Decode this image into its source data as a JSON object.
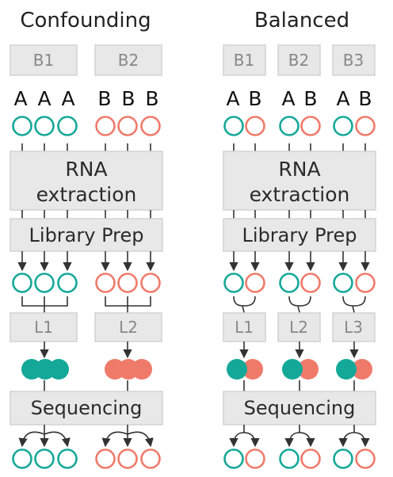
{
  "colors": {
    "A": "#14a898",
    "B": "#f07a6a"
  },
  "panels": [
    {
      "title": "Confounding",
      "batches": [
        "B1",
        "B2"
      ],
      "letters": [
        "A",
        "A",
        "A",
        "B",
        "B",
        "B"
      ],
      "rna_label_1": "RNA",
      "rna_label_2": "extraction",
      "libprep_label": "Library Prep",
      "libraries": [
        "L1",
        "L2"
      ],
      "sequencing_label": "Sequencing"
    },
    {
      "title": "Balanced",
      "batches": [
        "B1",
        "B2",
        "B3"
      ],
      "letters": [
        "A",
        "B",
        "A",
        "B",
        "A",
        "B"
      ],
      "rna_label_1": "RNA",
      "rna_label_2": "extraction",
      "libprep_label": "Library Prep",
      "libraries": [
        "L1",
        "L2",
        "L3"
      ],
      "sequencing_label": "Sequencing"
    }
  ]
}
